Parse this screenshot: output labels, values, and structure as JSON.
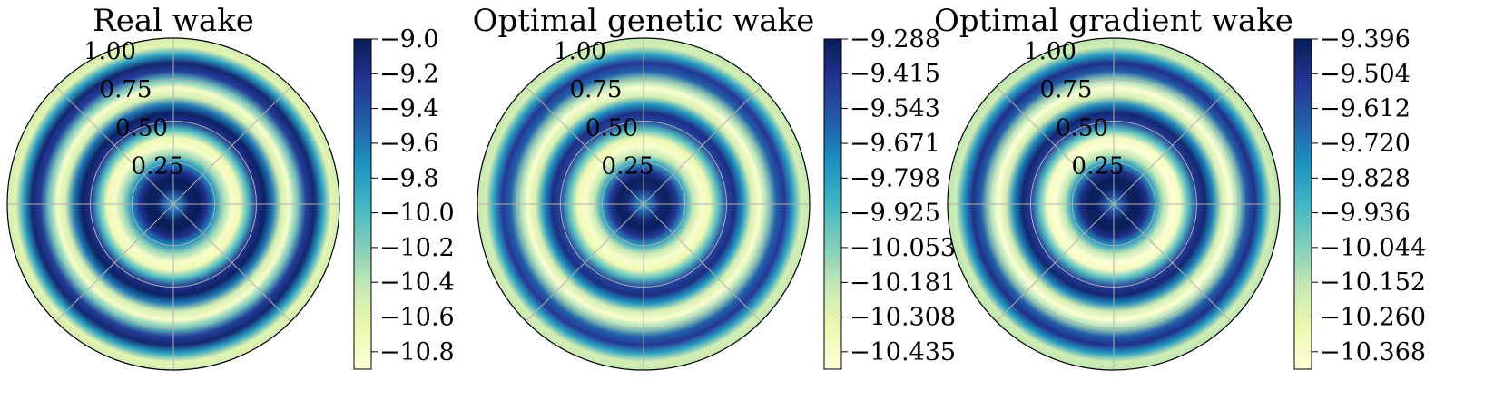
{
  "chart_data": [
    {
      "type": "heatmap",
      "projection": "polar",
      "title": "Real wake",
      "radial_ticks": [
        "0.25",
        "0.50",
        "0.75",
        "1.00"
      ],
      "rlim": [
        0,
        1.0
      ],
      "grid": true,
      "colormap": "YlGnBu",
      "colorbar": {
        "vmin": -10.9,
        "vmax": -9.0,
        "ticks": [
          -9.0,
          -9.2,
          -9.4,
          -9.6,
          -9.8,
          -10.0,
          -10.2,
          -10.4,
          -10.6,
          -10.8
        ],
        "tick_labels": [
          "−9.0",
          "−9.2",
          "−9.4",
          "−9.6",
          "−9.8",
          "−10.0",
          "−10.2",
          "−10.4",
          "−10.6",
          "−10.8"
        ]
      },
      "radial_profile": {
        "description": "value depends on radius only",
        "r": [
          0.0,
          0.05,
          0.1,
          0.15,
          0.2,
          0.25,
          0.3,
          0.35,
          0.4,
          0.45,
          0.5,
          0.55,
          0.6,
          0.65,
          0.7,
          0.75,
          0.8,
          0.85,
          0.9,
          0.95,
          1.0
        ],
        "value": [
          -9.9,
          -9.5,
          -9.05,
          -9.0,
          -9.2,
          -9.7,
          -10.3,
          -10.8,
          -10.7,
          -10.0,
          -9.2,
          -9.05,
          -9.6,
          -10.5,
          -10.8,
          -10.1,
          -9.3,
          -9.1,
          -9.8,
          -10.6,
          -10.5
        ]
      }
    },
    {
      "type": "heatmap",
      "projection": "polar",
      "title": "Optimal genetic wake",
      "radial_ticks": [
        "0.25",
        "0.50",
        "0.75",
        "1.00"
      ],
      "rlim": [
        0,
        1.0
      ],
      "grid": true,
      "colormap": "YlGnBu",
      "colorbar": {
        "vmin": -10.499,
        "vmax": -9.288,
        "ticks": [
          -9.288,
          -9.415,
          -9.543,
          -9.671,
          -9.798,
          -9.925,
          -10.053,
          -10.181,
          -10.308,
          -10.435
        ],
        "tick_labels": [
          "−9.288",
          "−9.415",
          "−9.543",
          "−9.671",
          "−9.798",
          "−9.925",
          "−10.053",
          "−10.181",
          "−10.308",
          "−10.435"
        ]
      },
      "radial_profile": {
        "description": "value depends on radius only",
        "r": [
          0.0,
          0.05,
          0.1,
          0.15,
          0.2,
          0.25,
          0.3,
          0.35,
          0.4,
          0.45,
          0.5,
          0.55,
          0.6,
          0.65,
          0.7,
          0.75,
          0.8,
          0.85,
          0.9,
          0.95,
          1.0
        ],
        "value": [
          -9.85,
          -9.6,
          -9.35,
          -9.3,
          -9.45,
          -9.8,
          -10.2,
          -10.45,
          -10.35,
          -9.95,
          -9.5,
          -9.4,
          -9.75,
          -10.25,
          -10.45,
          -10.1,
          -9.6,
          -9.45,
          -9.8,
          -10.25,
          -10.2
        ]
      }
    },
    {
      "type": "heatmap",
      "projection": "polar",
      "title": "Optimal gradient wake",
      "radial_ticks": [
        "0.25",
        "0.50",
        "0.75",
        "1.00"
      ],
      "rlim": [
        0,
        1.0
      ],
      "grid": true,
      "colormap": "YlGnBu",
      "colorbar": {
        "vmin": -10.422,
        "vmax": -9.396,
        "ticks": [
          -9.396,
          -9.504,
          -9.612,
          -9.72,
          -9.828,
          -9.936,
          -10.044,
          -10.152,
          -10.26,
          -10.368
        ],
        "tick_labels": [
          "−9.396",
          "−9.504",
          "−9.612",
          "−9.720",
          "−9.828",
          "−9.936",
          "−10.044",
          "−10.152",
          "−10.260",
          "−10.368"
        ]
      },
      "radial_profile": {
        "description": "value depends on radius only",
        "r": [
          0.0,
          0.05,
          0.1,
          0.15,
          0.2,
          0.25,
          0.3,
          0.35,
          0.4,
          0.45,
          0.5,
          0.55,
          0.6,
          0.65,
          0.7,
          0.75,
          0.8,
          0.85,
          0.9,
          0.95,
          1.0
        ],
        "value": [
          -9.85,
          -9.6,
          -9.42,
          -9.4,
          -9.5,
          -9.8,
          -10.15,
          -10.4,
          -10.35,
          -9.95,
          -9.55,
          -9.45,
          -9.75,
          -10.2,
          -10.4,
          -10.1,
          -9.65,
          -9.5,
          -9.8,
          -10.2,
          -10.15
        ]
      }
    }
  ],
  "colors": {
    "colormap_stops": [
      "#ffffd9",
      "#edf8b1",
      "#c7e9b4",
      "#7fcdbb",
      "#41b6c4",
      "#1d91c0",
      "#225ea8",
      "#253494",
      "#081d58"
    ],
    "grid": "#b0b0b0",
    "frame": "#000000"
  }
}
